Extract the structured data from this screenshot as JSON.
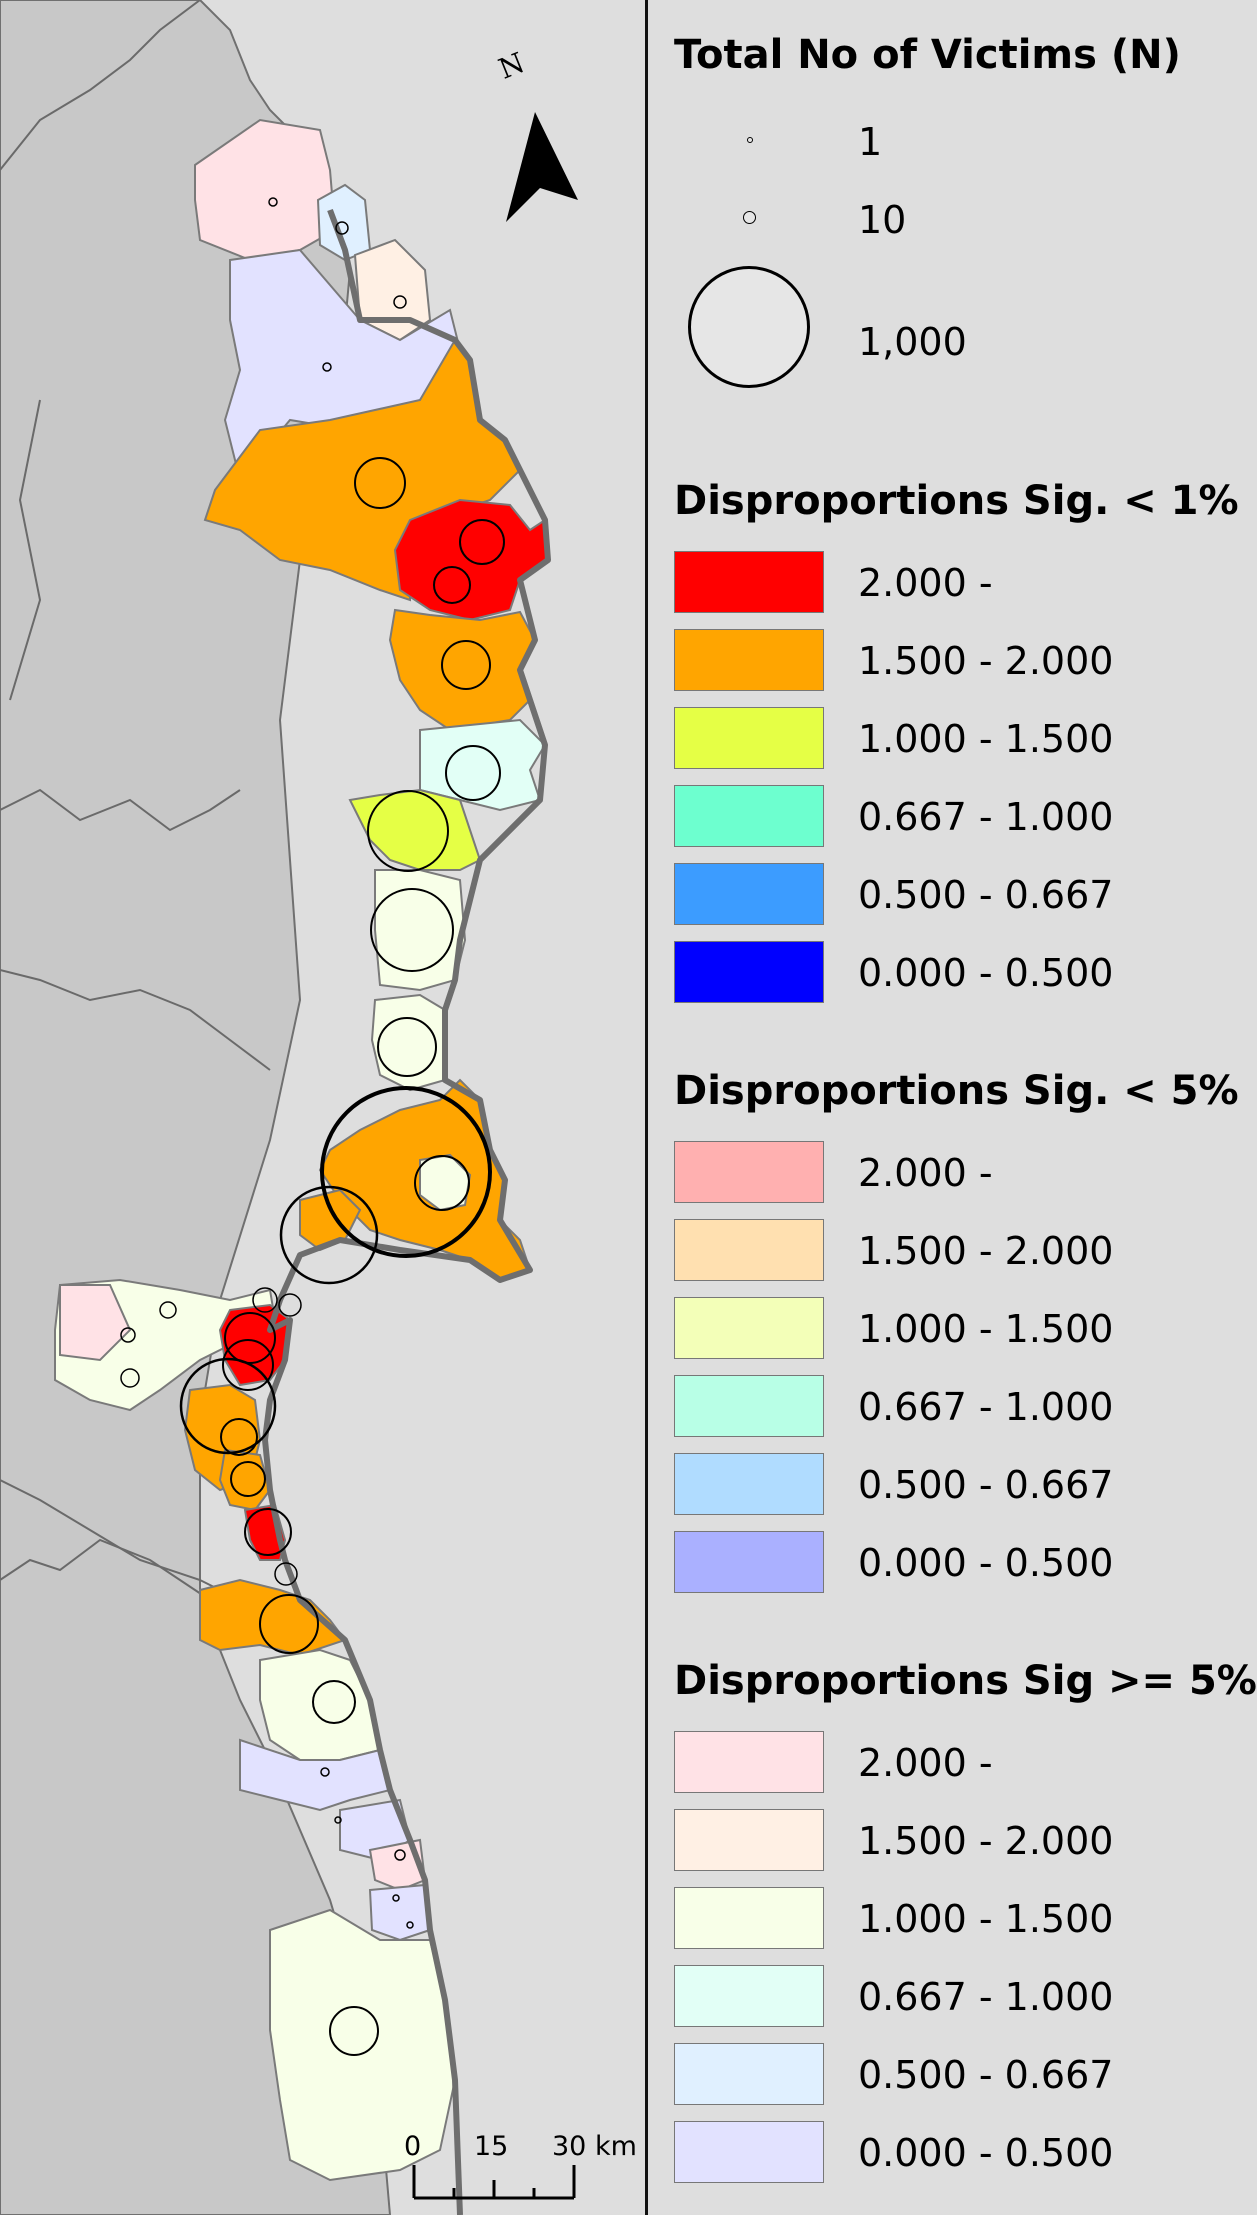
{
  "map": {
    "north_label": "N",
    "scale_labels": [
      "0",
      "15",
      "30 km"
    ]
  },
  "legend": {
    "size_title": "Total No of Victims (N)",
    "size_labels": [
      "1",
      "10",
      "1,000"
    ],
    "groups": [
      {
        "title": "Disproportions Sig. < 1%",
        "classes": [
          {
            "label": "2.000 -",
            "color": "#ff0000"
          },
          {
            "label": "1.500 - 2.000",
            "color": "#ffa500"
          },
          {
            "label": "1.000 - 1.500",
            "color": "#e5ff45"
          },
          {
            "label": "0.667 - 1.000",
            "color": "#6dffcf"
          },
          {
            "label": "0.500 - 0.667",
            "color": "#3c9cff"
          },
          {
            "label": "0.000 - 0.500",
            "color": "#0000ff"
          }
        ]
      },
      {
        "title": "Disproportions Sig. < 5%",
        "classes": [
          {
            "label": "2.000 -",
            "color": "#ffb0b0"
          },
          {
            "label": "1.500 - 2.000",
            "color": "#ffe0b0"
          },
          {
            "label": "1.000 - 1.500",
            "color": "#f3ffb8"
          },
          {
            "label": "0.667 - 1.000",
            "color": "#b8ffe6"
          },
          {
            "label": "0.500 - 0.667",
            "color": "#b0dcff"
          },
          {
            "label": "0.000 - 0.500",
            "color": "#aab0ff"
          }
        ]
      },
      {
        "title": "Disproportions Sig >= 5%",
        "classes": [
          {
            "label": "2.000 -",
            "color": "#ffe2e6"
          },
          {
            "label": "1.500 - 2.000",
            "color": "#fff0e4"
          },
          {
            "label": "1.000 - 1.500",
            "color": "#f8ffe8"
          },
          {
            "label": "0.667 - 1.000",
            "color": "#e2fff6"
          },
          {
            "label": "0.500 - 0.667",
            "color": "#e0f0ff"
          },
          {
            "label": "0.000 - 0.500",
            "color": "#e2e2ff"
          }
        ]
      }
    ]
  }
}
